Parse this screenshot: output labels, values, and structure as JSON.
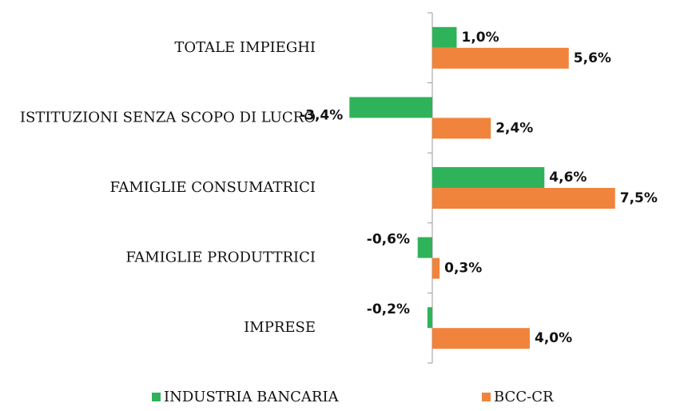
{
  "chart_data": {
    "type": "hbar",
    "categories": [
      "TOTALE IMPIEGHI",
      "ISTITUZIONI SENZA SCOPO DI LUCRO",
      "FAMIGLIE CONSUMATRICI",
      "FAMIGLIE PRODUTTRICI",
      "IMPRESE"
    ],
    "series": [
      {
        "name": "INDUSTRIA BANCARIA",
        "color": "#2fb35a",
        "values": [
          1.0,
          -3.4,
          4.6,
          -0.6,
          -0.2
        ],
        "value_labels": [
          "1,0%",
          "-3,4%",
          "4,6%",
          "-0,6%",
          "-0,2%"
        ]
      },
      {
        "name": "BCC-CR",
        "color": "#f0843c",
        "values": [
          5.6,
          2.4,
          7.5,
          0.3,
          4.0
        ],
        "value_labels": [
          "5,6%",
          "2,4%",
          "7,5%",
          "0,3%",
          "4,0%"
        ]
      }
    ],
    "xlim": [
      -4,
      8
    ],
    "legend": "bottom"
  }
}
